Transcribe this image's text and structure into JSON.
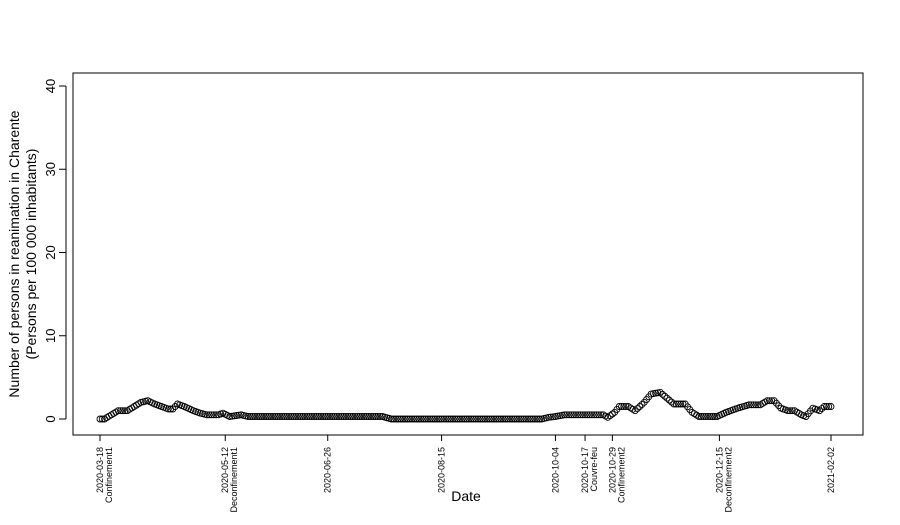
{
  "chart_data": {
    "type": "scatter",
    "xlabel": "Date",
    "ylabel_line1": "Number of persons in reanimation in Charente",
    "ylabel_line2": "(Persons per 100 000 inhabitants)",
    "x_start": "2020-03-18",
    "x_end": "2021-02-02",
    "ylim": [
      0,
      40
    ],
    "y_ticks": [
      0,
      10,
      20,
      30,
      40
    ],
    "x_ticks": [
      {
        "date": "2020-03-18",
        "label": "2020-03-18",
        "sublabel": "Confinement1"
      },
      {
        "date": "2020-05-12",
        "label": "2020-05-12",
        "sublabel": "Deconfinement1"
      },
      {
        "date": "2020-06-26",
        "label": "2020-06-26",
        "sublabel": ""
      },
      {
        "date": "2020-08-15",
        "label": "2020-08-15",
        "sublabel": ""
      },
      {
        "date": "2020-10-04",
        "label": "2020-10-04",
        "sublabel": ""
      },
      {
        "date": "2020-10-17",
        "label": "2020-10-17",
        "sublabel": "Couvre-feu"
      },
      {
        "date": "2020-10-29",
        "label": "2020-10-29",
        "sublabel": "Confinement2"
      },
      {
        "date": "2020-12-15",
        "label": "2020-12-15",
        "sublabel": "Deconfinement2"
      },
      {
        "date": "2021-02-02",
        "label": "2021-02-02",
        "sublabel": ""
      }
    ],
    "grid": false,
    "legend": "none",
    "marker": "open-circle",
    "y_knots": [
      [
        "2020-03-18",
        0.0
      ],
      [
        "2020-03-20",
        0.0
      ],
      [
        "2020-03-23",
        0.5
      ],
      [
        "2020-03-26",
        1.0
      ],
      [
        "2020-03-30",
        1.0
      ],
      [
        "2020-04-02",
        1.5
      ],
      [
        "2020-04-05",
        2.0
      ],
      [
        "2020-04-08",
        2.2
      ],
      [
        "2020-04-11",
        1.8
      ],
      [
        "2020-04-14",
        1.5
      ],
      [
        "2020-04-17",
        1.2
      ],
      [
        "2020-04-19",
        1.2
      ],
      [
        "2020-04-21",
        1.8
      ],
      [
        "2020-04-24",
        1.5
      ],
      [
        "2020-04-28",
        1.0
      ],
      [
        "2020-05-01",
        0.7
      ],
      [
        "2020-05-04",
        0.5
      ],
      [
        "2020-05-09",
        0.5
      ],
      [
        "2020-05-11",
        0.7
      ],
      [
        "2020-05-14",
        0.3
      ],
      [
        "2020-05-19",
        0.5
      ],
      [
        "2020-05-22",
        0.3
      ],
      [
        "2020-07-20",
        0.3
      ],
      [
        "2020-07-24",
        0.0
      ],
      [
        "2020-09-28",
        0.0
      ],
      [
        "2020-10-01",
        0.2
      ],
      [
        "2020-10-04",
        0.3
      ],
      [
        "2020-10-08",
        0.5
      ],
      [
        "2020-10-25",
        0.5
      ],
      [
        "2020-10-27",
        0.2
      ],
      [
        "2020-10-30",
        0.8
      ],
      [
        "2020-11-01",
        1.5
      ],
      [
        "2020-11-05",
        1.5
      ],
      [
        "2020-11-08",
        1.0
      ],
      [
        "2020-11-12",
        2.0
      ],
      [
        "2020-11-15",
        3.0
      ],
      [
        "2020-11-19",
        3.2
      ],
      [
        "2020-11-22",
        2.5
      ],
      [
        "2020-11-25",
        1.8
      ],
      [
        "2020-11-30",
        1.8
      ],
      [
        "2020-12-03",
        0.8
      ],
      [
        "2020-12-06",
        0.3
      ],
      [
        "2020-12-14",
        0.3
      ],
      [
        "2020-12-18",
        0.8
      ],
      [
        "2020-12-23",
        1.3
      ],
      [
        "2020-12-28",
        1.7
      ],
      [
        "2021-01-02",
        1.7
      ],
      [
        "2021-01-05",
        2.2
      ],
      [
        "2021-01-08",
        2.2
      ],
      [
        "2021-01-11",
        1.3
      ],
      [
        "2021-01-14",
        1.0
      ],
      [
        "2021-01-17",
        1.0
      ],
      [
        "2021-01-20",
        0.5
      ],
      [
        "2021-01-22",
        0.3
      ],
      [
        "2021-01-25",
        1.3
      ],
      [
        "2021-01-28",
        1.0
      ],
      [
        "2021-01-30",
        1.5
      ],
      [
        "2021-02-02",
        1.5
      ]
    ]
  }
}
